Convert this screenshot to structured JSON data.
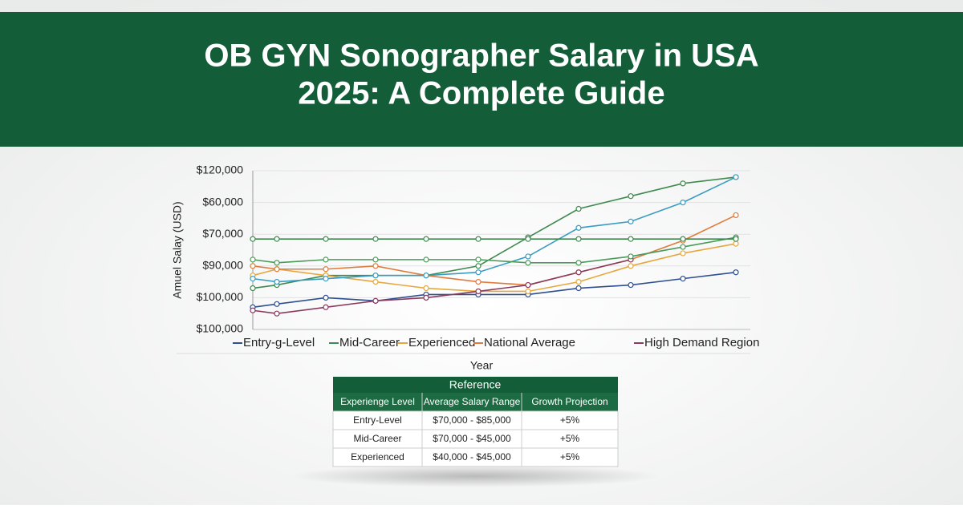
{
  "chart_data": {
    "type": "line",
    "title": [
      "OB GYN Sonographer Salary in USA",
      "2025: A Complete Guide"
    ],
    "y_axis_label": "Amuel Salay (USD)",
    "x_axis_label": "Year",
    "categories": [
      null,
      null,
      null,
      null,
      null,
      null,
      null,
      null,
      null,
      null,
      null
    ],
    "ylim": [
      0,
      5
    ],
    "yticks": [
      0,
      1,
      2,
      3,
      4,
      5
    ],
    "ytick_labels": [
      "$100,000",
      "$100,000",
      "$90,000",
      "$70,000",
      "$60,000",
      "$120,000"
    ],
    "grid": true,
    "legend": "bottom",
    "series": [
      {
        "name": "Entry-g-Level",
        "color": "#2f4f8f",
        "values": [
          0.7,
          0.8,
          1.0,
          0.9,
          1.1,
          1.1,
          1.1,
          1.3,
          1.4,
          1.6,
          1.8
        ]
      },
      {
        "name": "Mid-Career",
        "color": "#3f8a50",
        "values": [
          1.3,
          1.4,
          1.7,
          1.7,
          1.7,
          2.0,
          2.9,
          3.8,
          4.2,
          4.6,
          4.8
        ]
      },
      {
        "name": "Experienced",
        "color": "#e6a83e",
        "values": [
          1.7,
          1.9,
          1.7,
          1.5,
          1.3,
          1.2,
          1.2,
          1.5,
          2.0,
          2.4,
          2.7
        ]
      },
      {
        "name": "National Average",
        "color": "#e07b3c",
        "values": [
          2.0,
          1.9,
          1.9,
          2.0,
          1.7,
          1.5,
          1.4,
          1.8,
          2.2,
          2.8,
          3.6
        ]
      },
      {
        "name": "High Demand Region",
        "color": "#8a3a5e",
        "values": [
          0.6,
          0.5,
          0.7,
          0.9,
          1.0,
          1.2,
          1.4,
          1.8,
          2.2,
          null,
          null
        ]
      },
      {
        "color": "#3a9cc0",
        "values": [
          1.6,
          1.5,
          1.6,
          1.7,
          1.7,
          1.8,
          2.3,
          3.2,
          3.4,
          4.0,
          4.8
        ]
      },
      {
        "color": "#4a9a5a",
        "values": [
          2.2,
          2.1,
          2.2,
          2.2,
          2.2,
          2.2,
          2.1,
          2.1,
          2.3,
          2.6,
          2.9
        ]
      },
      {
        "color": "#3f8a50",
        "values": [
          2.85,
          2.85,
          2.85,
          2.85,
          2.85,
          2.85,
          2.85,
          2.85,
          2.85,
          2.85,
          2.85
        ]
      }
    ]
  },
  "table": {
    "title": "Reference",
    "header": [
      "Experienge Level",
      "Average Salary Range",
      "Growth Projection"
    ],
    "rows": [
      [
        "Entry-Level",
        "$70,000 - $85,000",
        "+5%"
      ],
      [
        "Mid-Career",
        "$70,000 - $45,000",
        "+5%"
      ],
      [
        "Experienced",
        "$40,000 - $45,000",
        "+5%"
      ]
    ]
  }
}
